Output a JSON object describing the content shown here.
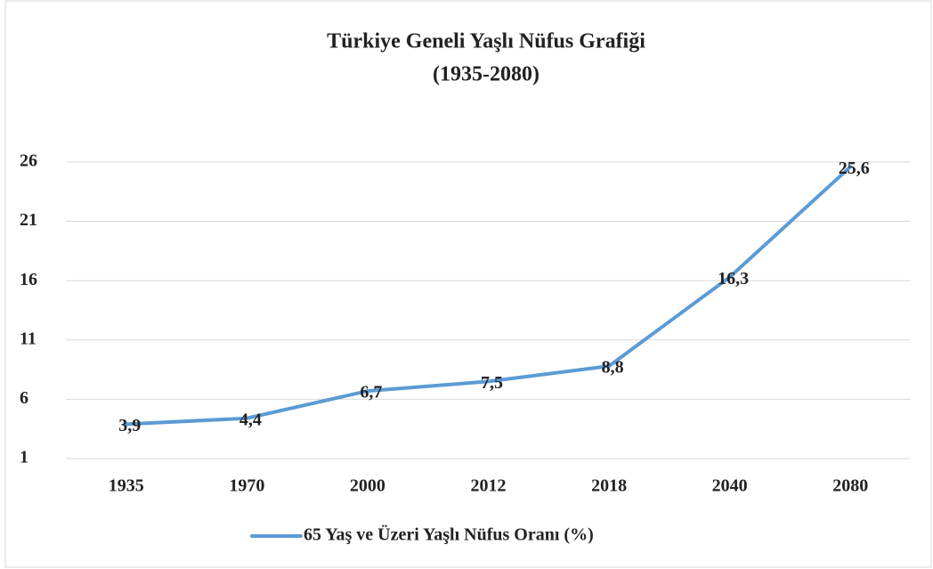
{
  "chart_data": {
    "type": "line",
    "title": [
      "Türkiye Geneli Yaşlı Nüfus Grafiği",
      "(1935-2080)"
    ],
    "categories": [
      "1935",
      "1970",
      "2000",
      "2012",
      "2018",
      "2040",
      "2080"
    ],
    "series": [
      {
        "name": "65 Yaş ve Üzeri Yaşlı Nüfus Oranı (%)",
        "color": "#5b9bd5",
        "values": [
          3.9,
          4.4,
          6.7,
          7.5,
          8.8,
          16.3,
          25.6
        ],
        "value_labels": [
          "3,9",
          "4,4",
          "6,7",
          "7,5",
          "8,8",
          "16,3",
          "25,6"
        ]
      }
    ],
    "ylim": [
      1,
      26
    ],
    "yticks": [
      1,
      6,
      11,
      16,
      21,
      26
    ],
    "grid": true,
    "legend": "bottom"
  }
}
